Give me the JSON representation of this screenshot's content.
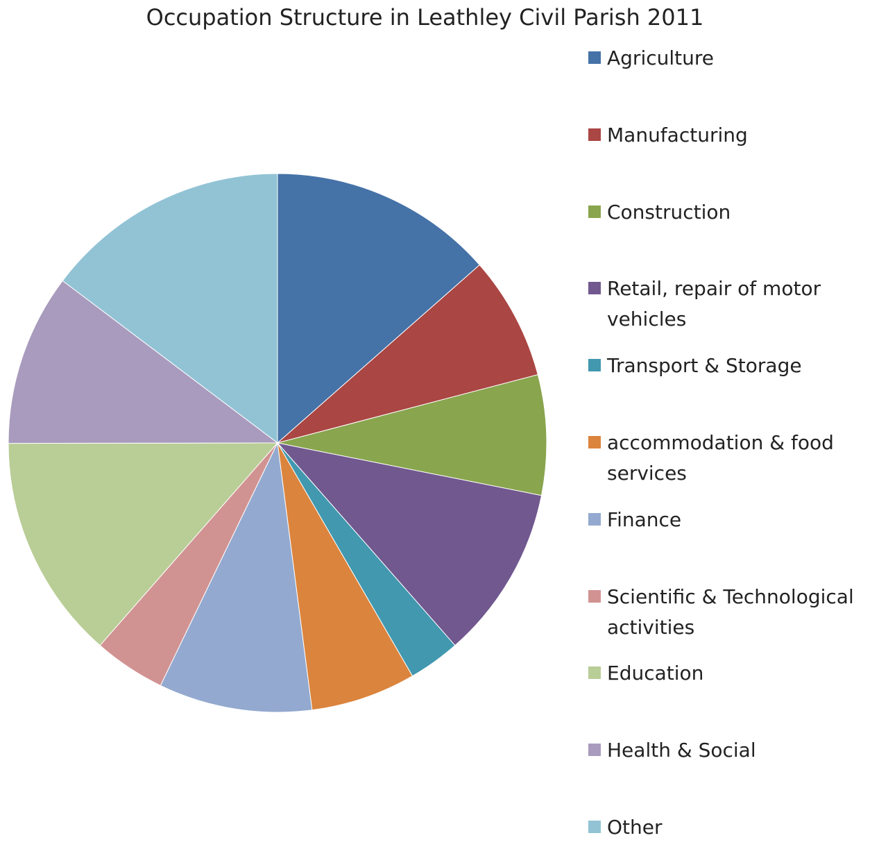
{
  "chart_data": {
    "type": "pie",
    "title": "Occupation Structure in Leathley Civil Parish 2011",
    "categories": [
      "Agriculture",
      "Manufacturing",
      "Construction",
      "Retail, repair of motor vehicles",
      "Transport & Storage",
      "accommodation & food services",
      "Finance",
      "Scientific & Technological activities",
      "Education",
      "Health & Social",
      "Other"
    ],
    "values": [
      13.5,
      7.4,
      7.2,
      10.4,
      3.1,
      6.3,
      9.2,
      4.3,
      13.5,
      10.3,
      14.7
    ],
    "colors": [
      "#4572a7",
      "#aa4643",
      "#89a54e",
      "#71588f",
      "#4198af",
      "#db843d",
      "#93a9cf",
      "#d19392",
      "#b9cd96",
      "#a99bbd",
      "#92c3d5"
    ]
  }
}
